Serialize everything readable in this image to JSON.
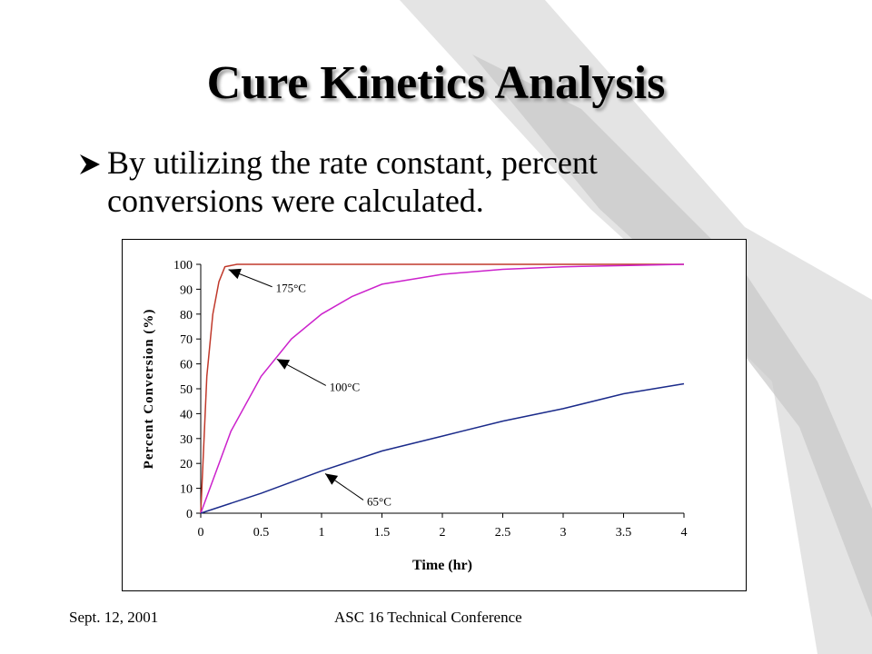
{
  "slide": {
    "title": "Cure Kinetics Analysis",
    "bullet": "By utilizing the rate constant, percent conversions were calculated.",
    "bullet_icon": "arrowhead-bullet-icon"
  },
  "footer": {
    "date": "Sept. 12, 2001",
    "conference": "ASC 16 Technical Conference"
  },
  "colors": {
    "series_175": "#c0392b",
    "series_100": "#cc22cc",
    "series_65": "#1a2a8a",
    "background_swoosh": "#d0d0d0"
  },
  "chart_data": {
    "type": "line",
    "xlabel": "Time (hr)",
    "ylabel": "Percent Conversion (%)",
    "xlim": [
      0,
      4
    ],
    "ylim": [
      0,
      100
    ],
    "x_ticks": [
      "0",
      "0.5",
      "1",
      "1.5",
      "2",
      "2.5",
      "3",
      "3.5",
      "4"
    ],
    "y_ticks": [
      "0",
      "10",
      "20",
      "30",
      "40",
      "50",
      "60",
      "70",
      "80",
      "90",
      "100"
    ],
    "grid": false,
    "series": [
      {
        "name": "175°C",
        "x": [
          0,
          0.05,
          0.1,
          0.15,
          0.2,
          0.3,
          0.5,
          1,
          2,
          3,
          4
        ],
        "y": [
          0,
          55,
          80,
          93,
          99,
          100,
          100,
          100,
          100,
          100,
          100
        ]
      },
      {
        "name": "100°C",
        "x": [
          0,
          0.25,
          0.5,
          0.75,
          1,
          1.25,
          1.5,
          2,
          2.5,
          3,
          3.5,
          4
        ],
        "y": [
          0,
          33,
          55,
          70,
          80,
          87,
          92,
          96,
          98,
          99,
          99.5,
          100
        ]
      },
      {
        "name": "65°C",
        "x": [
          0,
          0.5,
          1,
          1.5,
          2,
          2.5,
          3,
          3.5,
          4
        ],
        "y": [
          0,
          8,
          17,
          25,
          31,
          37,
          42,
          48,
          52
        ]
      }
    ],
    "annotations": [
      {
        "label": "175°C",
        "target_x": 0.2,
        "target_y": 99
      },
      {
        "label": "100°C",
        "target_x": 0.6,
        "target_y": 63
      },
      {
        "label": "65°C",
        "target_x": 1.0,
        "target_y": 17
      }
    ]
  }
}
